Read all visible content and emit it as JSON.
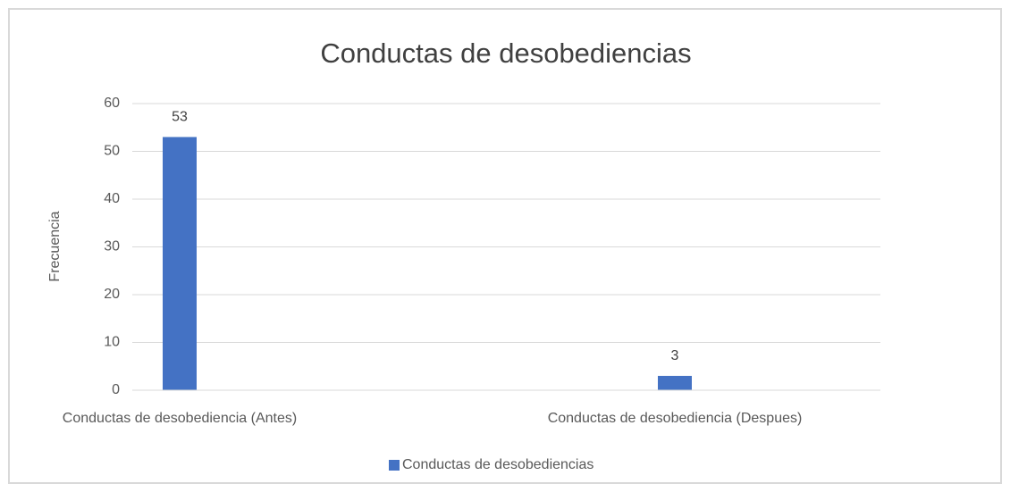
{
  "chart_data": {
    "type": "bar",
    "title": "Conductas de desobediencias",
    "categories": [
      "Conductas de desobediencia (Antes)",
      "Conductas de desobediencia (Despues)"
    ],
    "series": [
      {
        "name": "Conductas de desobediencias",
        "color": "#4472c4",
        "values": [
          53,
          3
        ]
      }
    ],
    "y_label": "Frecuencia",
    "ylim": [
      0,
      60
    ],
    "yticks": [
      0,
      10,
      20,
      30,
      40,
      50,
      60
    ],
    "grid": true,
    "legend": "bottom"
  }
}
